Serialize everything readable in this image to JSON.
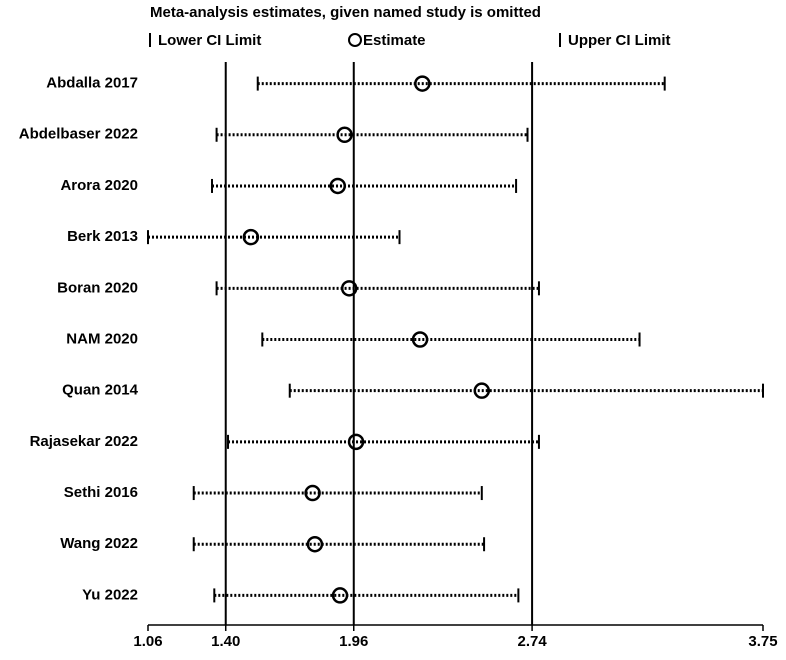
{
  "chart_data": {
    "type": "forest",
    "title": "Meta-analysis estimates, given named study is omitted",
    "categories": [
      "Abdalla 2017",
      "Abdelbaser 2022",
      "Arora 2020",
      "Berk 2013",
      "Boran 2020",
      "NAM 2020",
      "Quan 2014",
      "Rajasekar 2022",
      "Sethi 2016",
      "Wang 2022",
      "Yu 2022"
    ],
    "series": [
      {
        "name": "Lower CI Limit",
        "color": "#000000",
        "values": [
          1.54,
          1.36,
          1.34,
          1.06,
          1.36,
          1.56,
          1.68,
          1.41,
          1.26,
          1.26,
          1.35
        ]
      },
      {
        "name": "Estimate",
        "color": "#000000",
        "values": [
          2.26,
          1.92,
          1.89,
          1.51,
          1.94,
          2.25,
          2.52,
          1.97,
          1.78,
          1.79,
          1.9
        ]
      },
      {
        "name": "Upper CI Limit",
        "color": "#000000",
        "values": [
          3.32,
          2.72,
          2.67,
          2.16,
          2.77,
          3.21,
          3.75,
          2.77,
          2.52,
          2.53,
          2.68
        ]
      }
    ],
    "xlim": [
      1.06,
      3.75
    ],
    "xticks": [
      1.06,
      {
        "value": 1.4,
        "label": "1.40"
      },
      1.96,
      2.74,
      3.75
    ],
    "reference_lines": [
      1.4,
      1.96,
      2.74
    ]
  }
}
